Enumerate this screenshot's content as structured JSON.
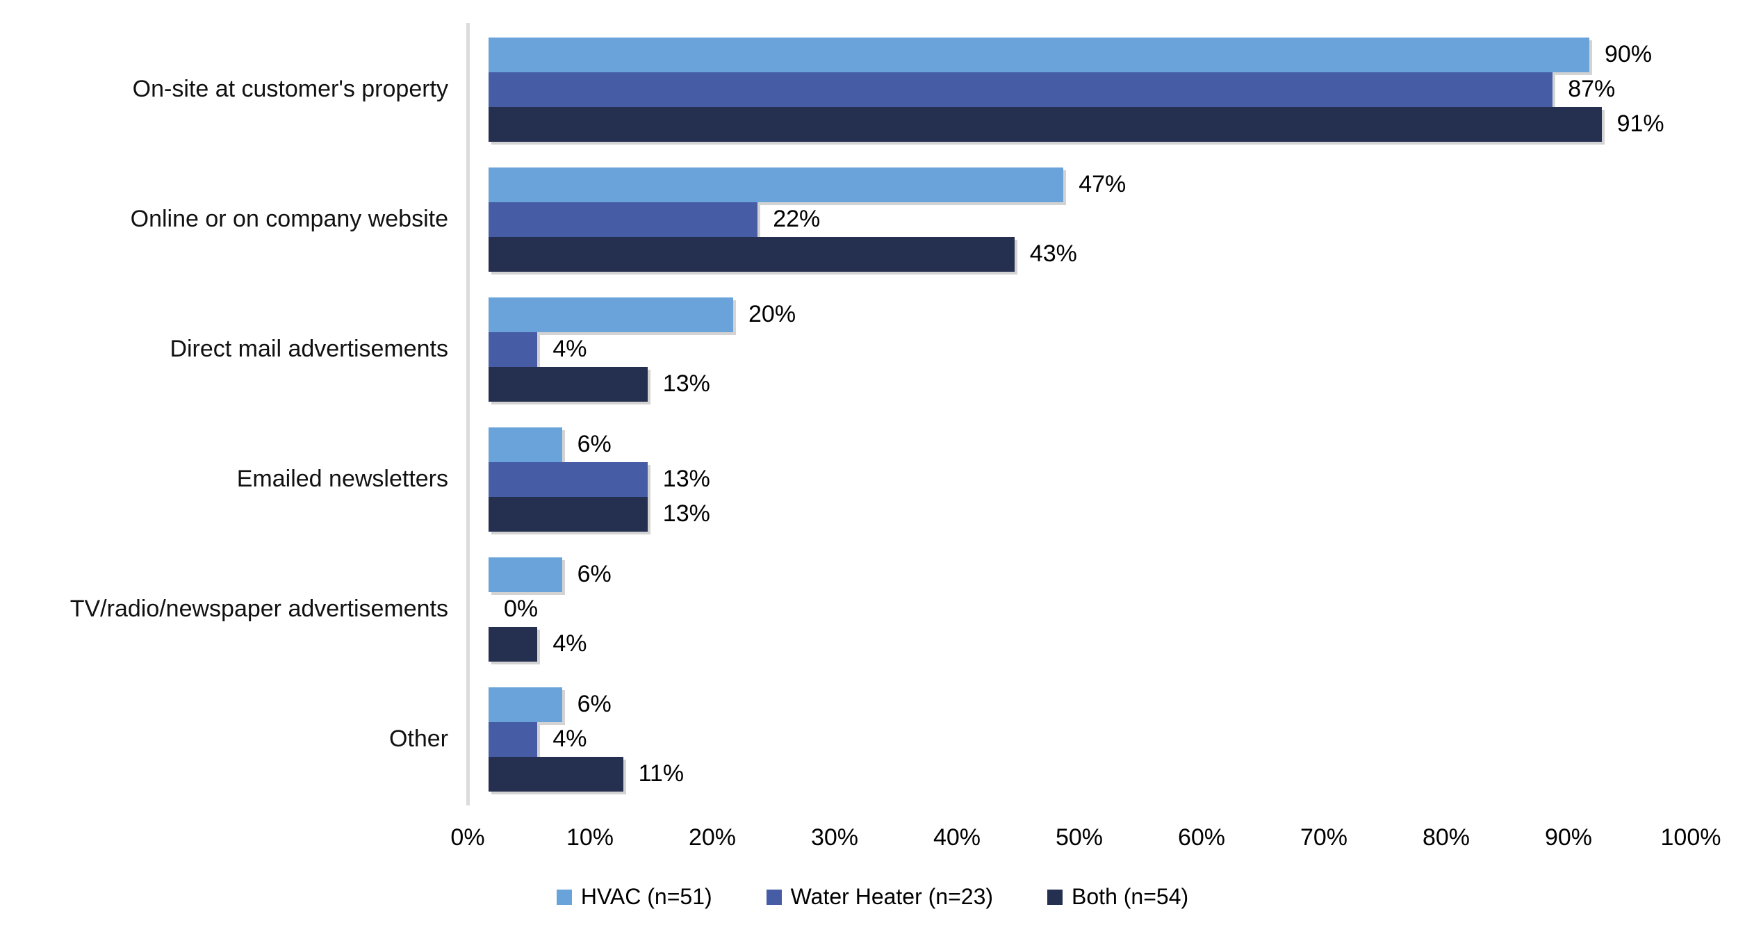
{
  "chart_data": {
    "type": "bar",
    "orientation": "horizontal",
    "title": "",
    "categories": [
      "On-site at customer's property",
      "Online or on company website",
      "Direct mail advertisements",
      "Emailed newsletters",
      "TV/radio/newspaper advertisements",
      "Other"
    ],
    "series": [
      {
        "name": "HVAC (n=51)",
        "key": "hvac",
        "color": "#69A3D9",
        "values": [
          90,
          47,
          20,
          6,
          6,
          6
        ]
      },
      {
        "name": "Water Heater (n=23)",
        "key": "water",
        "color": "#465DA6",
        "values": [
          87,
          22,
          4,
          13,
          0,
          4
        ]
      },
      {
        "name": "Both (n=54)",
        "key": "both",
        "color": "#252F50",
        "values": [
          91,
          43,
          13,
          13,
          4,
          11
        ]
      }
    ],
    "value_label_suffix": "%",
    "x_ticks": [
      "0%",
      "10%",
      "20%",
      "30%",
      "40%",
      "50%",
      "60%",
      "70%",
      "80%",
      "90%",
      "100%"
    ],
    "xlim": [
      0,
      100
    ],
    "grid": false,
    "legend_position": "bottom",
    "colors": {
      "axis_line": "#DCDCDC",
      "text": "#000000",
      "background": "#FFFFFF"
    }
  }
}
